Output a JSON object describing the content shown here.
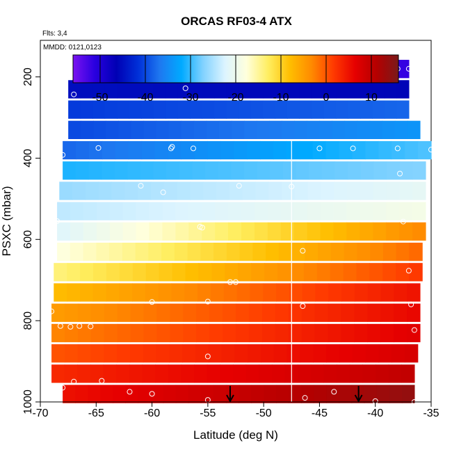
{
  "chart_data": {
    "type": "heatmap",
    "title": "ORCAS RF03-4 ATX",
    "subtitle_flights": "Flts: 3,4",
    "subtitle_dates": "MMDD: 0121,0123",
    "xlabel": "Latitude (deg N)",
    "ylabel": "PSXC (mbar)",
    "xlim": [
      -70,
      -35
    ],
    "ylim": [
      1000,
      110
    ],
    "x_ticks": [
      "-70",
      "-65",
      "-60",
      "-55",
      "-50",
      "-45",
      "-40",
      "-35"
    ],
    "y_ticks": [
      "200",
      "400",
      "600",
      "800",
      "1000"
    ],
    "colorbar": {
      "range": [
        -56,
        16
      ],
      "ticks": [
        "-50",
        "-40",
        "-30",
        "-20",
        "-10",
        "0",
        "10"
      ],
      "colors": [
        "#7a12f0",
        "#2a00e0",
        "#0000b4",
        "#0030d8",
        "#1e78f0",
        "#00aaff",
        "#82d2ff",
        "#dcf4ff",
        "#ffffdc",
        "#ffee60",
        "#ffbe00",
        "#ff8a00",
        "#ff3a00",
        "#e60000",
        "#b40000",
        "#7a1a1a"
      ]
    },
    "vertical_line_lat": -47.5,
    "rows": [
      {
        "p": 180,
        "lat_min": -66.5,
        "lat_max": -37,
        "t_south": -44,
        "t_north": -52
      },
      {
        "p": 230,
        "lat_min": -67.5,
        "lat_max": -37,
        "t_south": -45,
        "t_north": -46
      },
      {
        "p": 280,
        "lat_min": -67.5,
        "lat_max": -37,
        "t_south": -41,
        "t_north": -38
      },
      {
        "p": 330,
        "lat_min": -67.5,
        "lat_max": -36,
        "t_south": -40,
        "t_north": -34
      },
      {
        "p": 380,
        "lat_min": -68,
        "lat_max": -35,
        "t_south": -38,
        "t_north": -29
      },
      {
        "p": 430,
        "lat_min": -68,
        "lat_max": -35.5,
        "t_south": -31,
        "t_north": -27
      },
      {
        "p": 480,
        "lat_min": -68.3,
        "lat_max": -35.5,
        "t_south": -26,
        "t_north": -21
      },
      {
        "p": 530,
        "lat_min": -68.5,
        "lat_max": -35.5,
        "t_south": -24,
        "t_north": -19
      },
      {
        "p": 580,
        "lat_min": -68.5,
        "lat_max": -35.5,
        "t_south": -22,
        "t_north": -3
      },
      {
        "p": 630,
        "lat_min": -68.5,
        "lat_max": -35.8,
        "t_south": -18,
        "t_north": -1
      },
      {
        "p": 680,
        "lat_min": -68.8,
        "lat_max": -35.8,
        "t_south": -14,
        "t_north": 2
      },
      {
        "p": 730,
        "lat_min": -68.8,
        "lat_max": -36,
        "t_south": -8,
        "t_north": 5
      },
      {
        "p": 780,
        "lat_min": -69,
        "lat_max": -36,
        "t_south": -5,
        "t_north": 6
      },
      {
        "p": 830,
        "lat_min": -69,
        "lat_max": -36,
        "t_south": -3,
        "t_north": 7
      },
      {
        "p": 880,
        "lat_min": -69,
        "lat_max": -36.2,
        "t_south": 0,
        "t_north": 8
      },
      {
        "p": 930,
        "lat_min": -69,
        "lat_max": -36.5,
        "t_south": 3,
        "t_north": 10
      },
      {
        "p": 980,
        "lat_min": -68,
        "lat_max": -36.5,
        "t_south": 5,
        "t_north": 14
      }
    ],
    "points": [
      [
        -66.5,
        180
      ],
      [
        -58,
        180
      ],
      [
        -57.5,
        180
      ],
      [
        -56.5,
        180
      ],
      [
        -50.5,
        180
      ],
      [
        -49,
        180
      ],
      [
        -38,
        180
      ],
      [
        -37,
        180
      ],
      [
        -57,
        228
      ],
      [
        -67,
        243
      ],
      [
        -64.8,
        375
      ],
      [
        -58.2,
        372
      ],
      [
        -58.3,
        376
      ],
      [
        -56.3,
        376
      ],
      [
        -68,
        392
      ],
      [
        -45,
        376
      ],
      [
        -42,
        376
      ],
      [
        -38,
        376
      ],
      [
        -35,
        379
      ],
      [
        -37.8,
        438
      ],
      [
        -52.2,
        468
      ],
      [
        -61,
        468
      ],
      [
        -59,
        484
      ],
      [
        -47.5,
        470
      ],
      [
        -68.5,
        555
      ],
      [
        -55.7,
        569
      ],
      [
        -55.5,
        571
      ],
      [
        -37.5,
        556
      ],
      [
        -46.5,
        628
      ],
      [
        -37,
        677
      ],
      [
        -53,
        705
      ],
      [
        -52.5,
        705
      ],
      [
        -60,
        754
      ],
      [
        -55,
        753
      ],
      [
        -46.5,
        764
      ],
      [
        -36.8,
        760
      ],
      [
        -69,
        777
      ],
      [
        -68.2,
        813
      ],
      [
        -67.3,
        815
      ],
      [
        -66.5,
        813
      ],
      [
        -65.5,
        814
      ],
      [
        -36.5,
        823
      ],
      [
        -55,
        888
      ],
      [
        -64.5,
        948
      ],
      [
        -67,
        950
      ],
      [
        -69,
        960
      ],
      [
        -68,
        965
      ],
      [
        -62,
        975
      ],
      [
        -60,
        980
      ],
      [
        -46.3,
        990
      ],
      [
        -43.7,
        975
      ],
      [
        -55,
        995
      ],
      [
        -40,
        998
      ],
      [
        -36.5,
        1000
      ]
    ],
    "arrows_lat": [
      -53,
      -41.5
    ]
  }
}
